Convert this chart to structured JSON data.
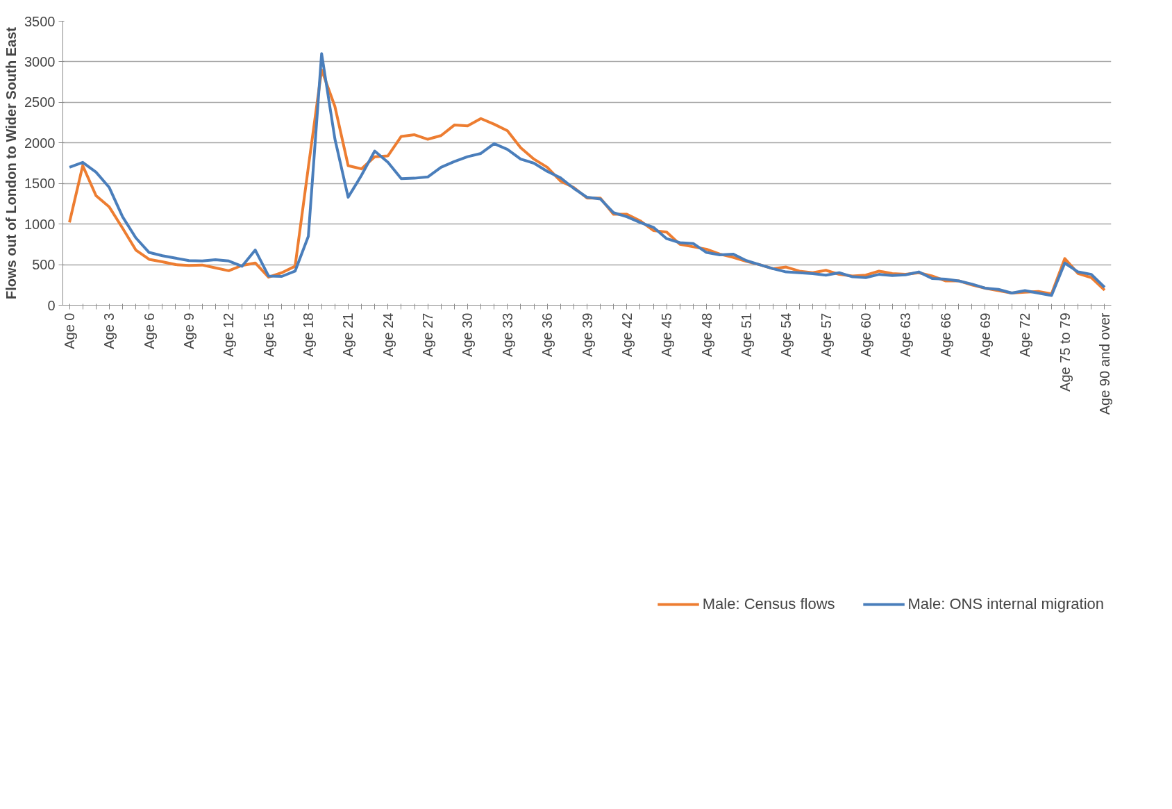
{
  "chart_data": {
    "type": "line",
    "ylabel": "Flows out of London to Wider South East",
    "categories": [
      "Age 0",
      null,
      null,
      "Age 3",
      null,
      null,
      "Age 6",
      null,
      null,
      "Age 9",
      null,
      null,
      "Age 12",
      null,
      null,
      "Age 15",
      null,
      null,
      "Age 18",
      null,
      null,
      "Age 21",
      null,
      null,
      "Age 24",
      null,
      null,
      "Age 27",
      null,
      null,
      "Age 30",
      null,
      null,
      "Age 33",
      null,
      null,
      "Age 36",
      null,
      null,
      "Age 39",
      null,
      null,
      "Age 42",
      null,
      null,
      "Age 45",
      null,
      null,
      "Age 48",
      null,
      null,
      "Age 51",
      null,
      null,
      "Age 54",
      null,
      null,
      "Age 57",
      null,
      null,
      "Age 60",
      null,
      null,
      "Age 63",
      null,
      null,
      "Age 66",
      null,
      null,
      "Age 69",
      null,
      null,
      "Age 72",
      null,
      null,
      "Age 75 to 79",
      null,
      null,
      "Age 90 and over"
    ],
    "series": [
      {
        "name": "Male: Census flows",
        "color": "#ed7d31",
        "values": [
          1020,
          1720,
          1350,
          1210,
          950,
          680,
          565,
          535,
          500,
          490,
          495,
          460,
          425,
          490,
          520,
          345,
          400,
          480,
          1700,
          2900,
          2450,
          1720,
          1680,
          1830,
          1840,
          2080,
          2100,
          2045,
          2090,
          2220,
          2210,
          2300,
          2230,
          2150,
          1940,
          1800,
          1700,
          1530,
          1450,
          1320,
          1320,
          1120,
          1120,
          1040,
          920,
          900,
          750,
          720,
          690,
          630,
          590,
          540,
          500,
          450,
          470,
          420,
          400,
          430,
          380,
          360,
          370,
          420,
          390,
          380,
          400,
          360,
          300,
          300,
          250,
          210,
          180,
          150,
          160,
          170,
          140,
          575,
          390,
          340,
          185
        ]
      },
      {
        "name": "Male: ONS internal migration",
        "color": "#4a7ebb",
        "values": [
          1700,
          1760,
          1640,
          1450,
          1090,
          830,
          650,
          610,
          580,
          550,
          545,
          560,
          545,
          480,
          680,
          360,
          355,
          420,
          850,
          3100,
          2050,
          1330,
          1600,
          1900,
          1760,
          1560,
          1565,
          1580,
          1700,
          1770,
          1830,
          1870,
          1990,
          1920,
          1800,
          1750,
          1650,
          1570,
          1440,
          1330,
          1310,
          1140,
          1090,
          1020,
          960,
          820,
          770,
          760,
          650,
          620,
          630,
          550,
          500,
          450,
          410,
          400,
          390,
          370,
          400,
          350,
          340,
          380,
          365,
          375,
          410,
          330,
          320,
          300,
          260,
          210,
          195,
          150,
          180,
          150,
          120,
          520,
          410,
          380,
          220
        ]
      }
    ],
    "ylim": [
      0,
      3500
    ],
    "yticks": [
      0,
      500,
      1000,
      1500,
      2000,
      2500,
      3000,
      3500
    ],
    "grid": "y",
    "legend": "bottom",
    "marker": "none",
    "line_style": "solid"
  }
}
